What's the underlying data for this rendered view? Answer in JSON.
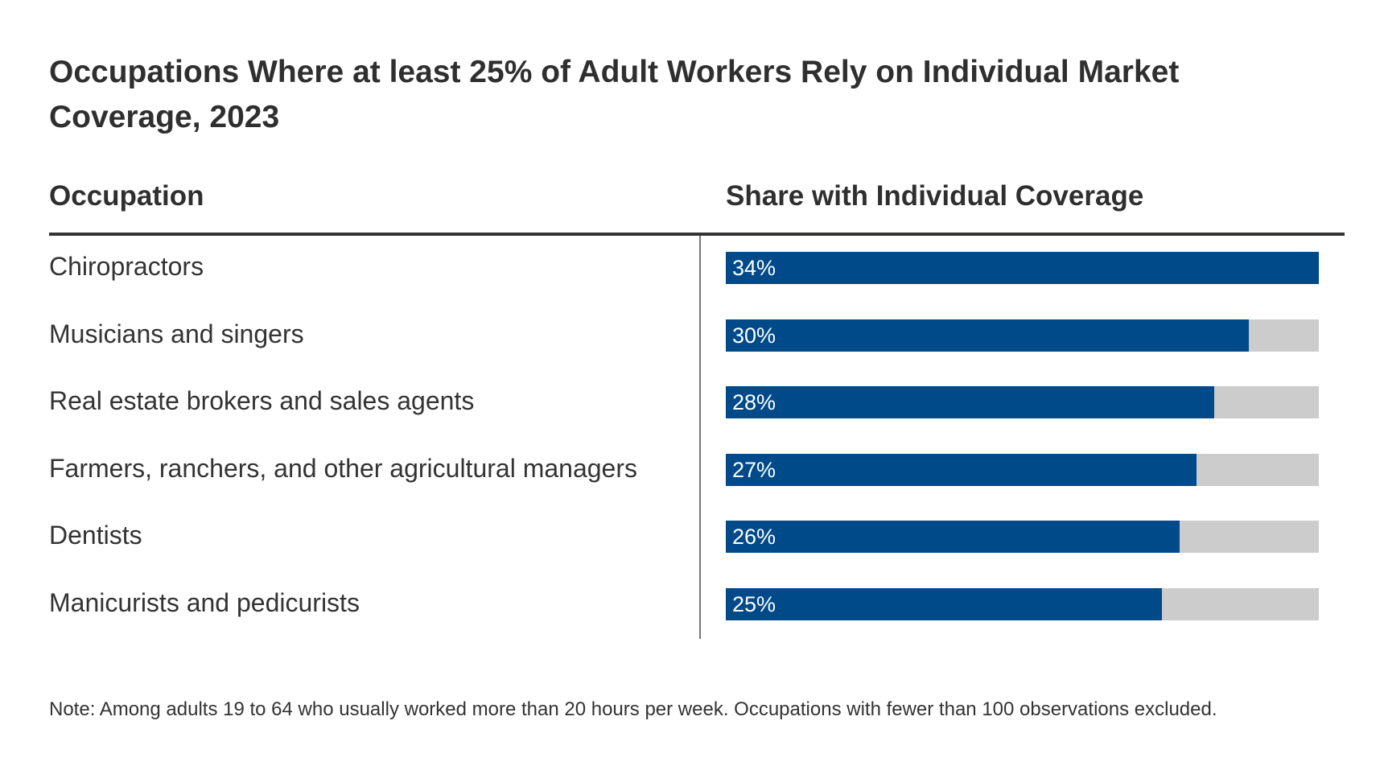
{
  "title": "Occupations Where at least 25% of Adult Workers Rely on Individual Market Coverage, 2023",
  "columns": {
    "occupation": "Occupation",
    "share": "Share with Individual Coverage"
  },
  "colors": {
    "bar": "#004a8a",
    "track": "#cccccc",
    "text": "#333333"
  },
  "chart_data": {
    "type": "bar",
    "orientation": "horizontal",
    "title": "Occupations Where at least 25% of Adult Workers Rely on Individual Market Coverage, 2023",
    "xlabel": "Share with Individual Coverage",
    "ylabel": "Occupation",
    "categories": [
      "Chiropractors",
      "Musicians and singers",
      "Real estate brokers and sales agents",
      "Farmers, ranchers, and other agricultural managers",
      "Dentists",
      "Manicurists and pedicurists"
    ],
    "values": [
      34,
      30,
      28,
      27,
      26,
      25
    ],
    "labels": [
      "34%",
      "30%",
      "28%",
      "27%",
      "26%",
      "25%"
    ],
    "xlim": [
      0,
      34
    ],
    "grid": false,
    "legend": "none"
  },
  "note": "Note: Among adults 19 to 64 who usually worked more than 20 hours per week. Occupations with fewer than 100 observations excluded."
}
